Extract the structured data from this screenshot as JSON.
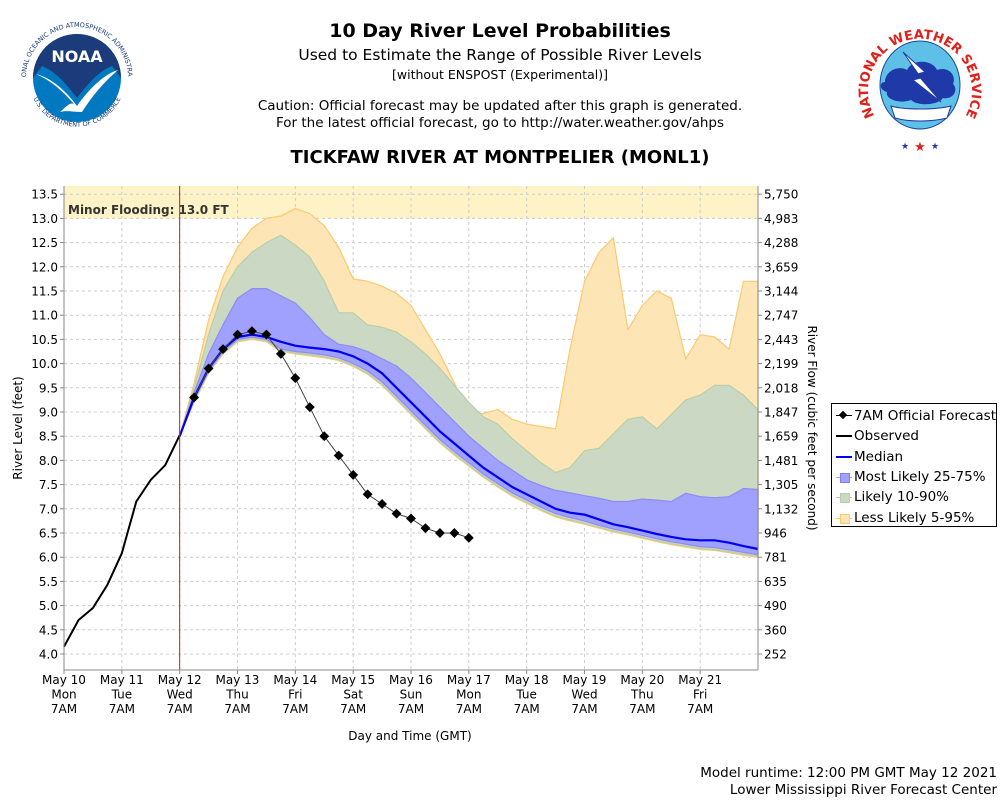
{
  "header": {
    "title": "10 Day River Level Probabilities",
    "subtitle": "Used to Estimate the Range of Possible River Levels",
    "subtitle2": "[without ENSPOST (Experimental)]",
    "caution1": "Caution: Official forecast may be updated after this graph is generated.",
    "caution2": "For the latest official forecast, go to http://water.weather.gov/ahps",
    "station": "TICKFAW RIVER AT MONTPELIER (MONL1)"
  },
  "logos": {
    "noaa": {
      "text": "NOAA",
      "ring_top": "NATIONAL OCEANIC AND ATMOSPHERIC ADMINISTRATION",
      "ring_bottom": "U.S. DEPARTMENT OF COMMERCE"
    },
    "nws": {
      "ring_text": "NATIONAL WEATHER SERVICE"
    }
  },
  "footer": {
    "runtime": "Model runtime: 12:00 PM GMT May 12 2021",
    "center": "Lower Mississippi River Forecast Center"
  },
  "colors": {
    "observed": "#000000",
    "median": "#0000ee",
    "band_25_75": "#a0a0ff",
    "band_10_90": "#cbd9c4",
    "band_5_95": "#fee5b5",
    "band_5_95_edge": "#fbc970",
    "band_10_90_edge": "#b8cfa8",
    "flood_zone": "#fdf3c6",
    "now_line": "#cc2222",
    "grid": "#cccccc"
  },
  "chart_data": {
    "type": "area",
    "title": "10 Day River Level Probabilities",
    "xlabel": "Day and Time (GMT)",
    "ylabel": "River Level (feet)",
    "y2label": "River Flow (cubic feet per second)",
    "ylim": [
      3.8,
      13.68
    ],
    "xlim_hours_from_start": [
      0,
      288
    ],
    "grid": true,
    "legend_position": "right",
    "flood_annotation": {
      "label": "Minor Flooding: 13.0 FT",
      "stage": 13.0
    },
    "now_marker_hours": 48,
    "x_ticks": [
      {
        "date": "May 10",
        "day": "Mon",
        "time": "7AM"
      },
      {
        "date": "May 11",
        "day": "Tue",
        "time": "7AM"
      },
      {
        "date": "May 12",
        "day": "Wed",
        "time": "7AM"
      },
      {
        "date": "May 13",
        "day": "Thu",
        "time": "7AM"
      },
      {
        "date": "May 14",
        "day": "Fri",
        "time": "7AM"
      },
      {
        "date": "May 15",
        "day": "Sat",
        "time": "7AM"
      },
      {
        "date": "May 16",
        "day": "Sun",
        "time": "7AM"
      },
      {
        "date": "May 17",
        "day": "Mon",
        "time": "7AM"
      },
      {
        "date": "May 18",
        "day": "Tue",
        "time": "7AM"
      },
      {
        "date": "May 19",
        "day": "Wed",
        "time": "7AM"
      },
      {
        "date": "May 20",
        "day": "Thu",
        "time": "7AM"
      },
      {
        "date": "May 21",
        "day": "Fri",
        "time": "7AM"
      }
    ],
    "y_ticks": [
      "4.0",
      "4.5",
      "5.0",
      "5.5",
      "6.0",
      "6.5",
      "7.0",
      "7.5",
      "8.0",
      "8.5",
      "9.0",
      "9.5",
      "10.0",
      "10.5",
      "11.0",
      "11.5",
      "12.0",
      "12.5",
      "13.0",
      "13.5"
    ],
    "y2_ticks": [
      "252",
      "360",
      "490",
      "635",
      "781",
      "946",
      "1,132",
      "1,305",
      "1,481",
      "1,659",
      "1,847",
      "2,018",
      "2,199",
      "2,443",
      "2,747",
      "3,144",
      "3,659",
      "4,288",
      "4,983",
      "5,750"
    ],
    "legend": [
      {
        "label": "7AM Official Forecast",
        "kind": "diamond"
      },
      {
        "label": "Observed",
        "kind": "line-black"
      },
      {
        "label": "Median",
        "kind": "line-blue"
      },
      {
        "label": "Most Likely 25-75%",
        "kind": "box-blue"
      },
      {
        "label": "Likely 10-90%",
        "kind": "box-green"
      },
      {
        "label": "Less Likely 5-95%",
        "kind": "box-orange"
      }
    ],
    "step_hours": 6,
    "observed": {
      "start_hour": 0,
      "values": [
        4.15,
        4.7,
        4.95,
        5.43,
        6.08,
        7.15,
        7.6,
        7.9,
        8.52
      ]
    },
    "official_forecast": {
      "start_hour": 54,
      "values": [
        9.3,
        9.9,
        10.3,
        10.6,
        10.67,
        10.6,
        10.2,
        9.7,
        9.1,
        8.5,
        8.1,
        7.7,
        7.3,
        7.1,
        6.9,
        6.8,
        6.6,
        6.5,
        6.5,
        6.4
      ]
    },
    "ensemble": {
      "start_hour": 48,
      "median": [
        8.5,
        9.3,
        9.9,
        10.3,
        10.55,
        10.6,
        10.55,
        10.45,
        10.37,
        10.33,
        10.3,
        10.25,
        10.15,
        10.0,
        9.8,
        9.5,
        9.2,
        8.9,
        8.6,
        8.35,
        8.1,
        7.85,
        7.65,
        7.45,
        7.3,
        7.15,
        7.0,
        6.92,
        6.88,
        6.78,
        6.68,
        6.62,
        6.55,
        6.48,
        6.42,
        6.37,
        6.35,
        6.35,
        6.3,
        6.23,
        6.17
      ],
      "p95": [
        8.5,
        9.6,
        10.9,
        11.8,
        12.4,
        12.8,
        13.0,
        13.05,
        13.2,
        13.1,
        12.85,
        12.4,
        11.75,
        11.7,
        11.6,
        11.45,
        11.2,
        10.7,
        10.2,
        9.6,
        8.95,
        8.97,
        9.05,
        8.85,
        8.75,
        8.7,
        8.65,
        10.3,
        11.7,
        12.3,
        12.6,
        10.7,
        11.2,
        11.5,
        11.35,
        10.1,
        10.6,
        10.55,
        10.3,
        11.7,
        11.7
      ],
      "p90": [
        8.5,
        9.5,
        10.6,
        11.5,
        12.0,
        12.3,
        12.5,
        12.65,
        12.45,
        12.2,
        11.7,
        11.05,
        11.05,
        10.8,
        10.75,
        10.65,
        10.45,
        10.2,
        9.9,
        9.55,
        9.2,
        8.9,
        8.75,
        8.45,
        8.2,
        7.95,
        7.75,
        7.85,
        8.2,
        8.25,
        8.55,
        8.85,
        8.9,
        8.65,
        8.95,
        9.25,
        9.35,
        9.55,
        9.55,
        9.35,
        9.05
      ],
      "p75": [
        8.5,
        9.4,
        10.2,
        10.8,
        11.35,
        11.55,
        11.55,
        11.4,
        11.25,
        10.95,
        10.6,
        10.4,
        10.35,
        10.25,
        10.1,
        9.95,
        9.7,
        9.4,
        9.1,
        8.8,
        8.5,
        8.25,
        8.0,
        7.8,
        7.6,
        7.48,
        7.38,
        7.33,
        7.27,
        7.22,
        7.15,
        7.15,
        7.2,
        7.18,
        7.15,
        7.32,
        7.25,
        7.23,
        7.25,
        7.42,
        7.4
      ],
      "p25": [
        8.5,
        9.25,
        9.85,
        10.25,
        10.5,
        10.55,
        10.5,
        10.3,
        10.25,
        10.22,
        10.18,
        10.12,
        10.0,
        9.85,
        9.62,
        9.32,
        9.02,
        8.72,
        8.43,
        8.18,
        7.95,
        7.72,
        7.52,
        7.33,
        7.18,
        7.03,
        6.9,
        6.82,
        6.75,
        6.66,
        6.58,
        6.52,
        6.45,
        6.38,
        6.32,
        6.27,
        6.22,
        6.2,
        6.15,
        6.1,
        6.05
      ],
      "p10": [
        8.5,
        9.22,
        9.82,
        10.22,
        10.47,
        10.52,
        10.47,
        10.27,
        10.22,
        10.18,
        10.14,
        10.08,
        9.96,
        9.8,
        9.57,
        9.27,
        8.97,
        8.67,
        8.38,
        8.13,
        7.9,
        7.67,
        7.47,
        7.28,
        7.13,
        6.98,
        6.85,
        6.77,
        6.7,
        6.62,
        6.54,
        6.48,
        6.41,
        6.34,
        6.28,
        6.23,
        6.18,
        6.16,
        6.11,
        6.06,
        6.02
      ],
      "p5": [
        8.5,
        9.2,
        9.8,
        10.2,
        10.45,
        10.5,
        10.45,
        10.25,
        10.2,
        10.16,
        10.12,
        10.06,
        9.94,
        9.78,
        9.55,
        9.25,
        8.95,
        8.65,
        8.36,
        8.11,
        7.88,
        7.65,
        7.45,
        7.26,
        7.11,
        6.96,
        6.83,
        6.75,
        6.68,
        6.6,
        6.52,
        6.46,
        6.39,
        6.32,
        6.26,
        6.21,
        6.16,
        6.14,
        6.09,
        6.04,
        6.0
      ]
    }
  }
}
